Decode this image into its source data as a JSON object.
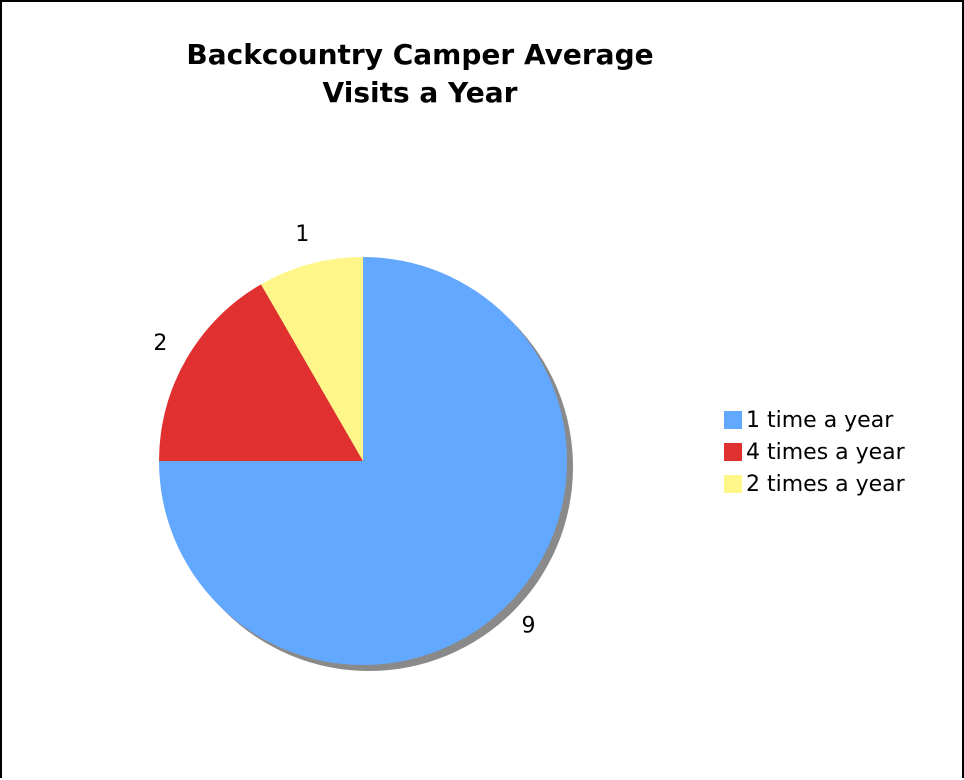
{
  "chart_data": {
    "type": "pie",
    "title": [
      "Backcountry Camper Average",
      "Visits a Year"
    ],
    "categories": [
      "1 time a year",
      "4 times a year",
      "2 times a year"
    ],
    "values": [
      9,
      2,
      1
    ],
    "colors": [
      "#62A8FF",
      "#E03030",
      "#FFF68A"
    ],
    "data_labels": [
      "9",
      "2",
      "1"
    ],
    "legend_position": "right"
  }
}
